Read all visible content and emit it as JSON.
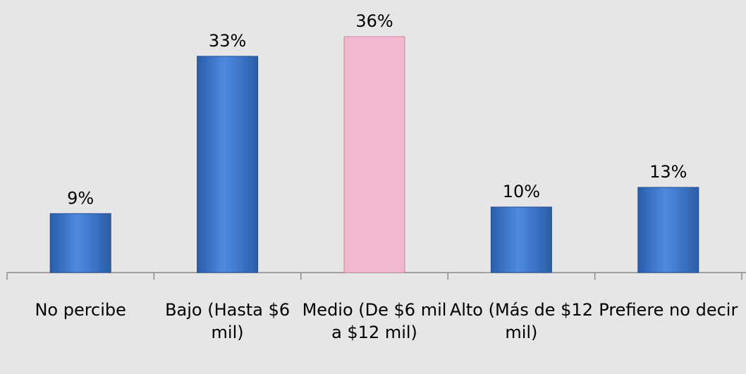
{
  "chart_data": {
    "type": "bar",
    "categories": [
      "No percibe",
      "Bajo (Hasta $6 mil)",
      "Medio (De $6 mil a $12 mil)",
      "Alto (Más de $12 mil)",
      "Prefiere no decir"
    ],
    "values": [
      9,
      33,
      36,
      10,
      13
    ],
    "value_labels": [
      "9%",
      "33%",
      "36%",
      "10%",
      "13%"
    ],
    "colors": [
      "#3f78cc",
      "#3f78cc",
      "#f2b8cf",
      "#3f78cc",
      "#3f78cc"
    ]
  }
}
